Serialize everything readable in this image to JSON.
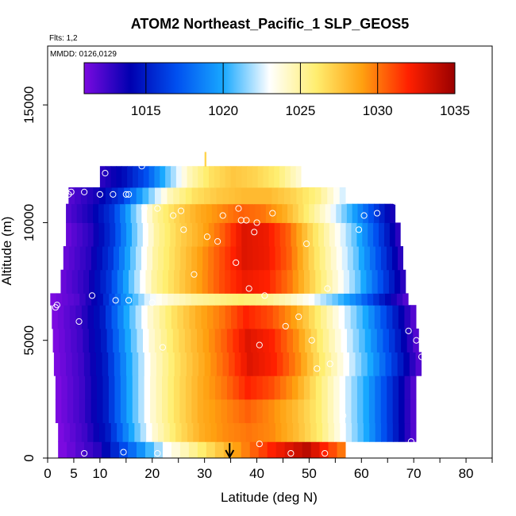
{
  "chart_data": {
    "type": "heatmap",
    "title": "ATOM2 Northeast_Pacific_1 SLP_GEOS5",
    "annotation_flights": "Flts: 1,2",
    "annotation_dates": "MMDD: 0126,0129",
    "xlabel": "Latitude (deg N)",
    "ylabel": "Altitude (m)",
    "xlim": [
      0,
      85
    ],
    "ylim": [
      0,
      17500
    ],
    "x_ticks": [
      0,
      5,
      10,
      20,
      30,
      40,
      50,
      60,
      70,
      80
    ],
    "x_tick_labels": [
      "0",
      "5",
      "10",
      "20",
      "30",
      "40",
      "50",
      "60",
      "70",
      "80"
    ],
    "x_minor_ticks": [
      15,
      25,
      35,
      45,
      55,
      65,
      75,
      85
    ],
    "y_ticks": [
      0,
      5000,
      10000,
      15000
    ],
    "y_tick_labels": [
      "0",
      "5000",
      "10000",
      "15000"
    ],
    "colorbar": {
      "min": 1011,
      "max": 1035,
      "ticks": [
        1015,
        1020,
        1025,
        1030,
        1035
      ],
      "tick_labels": [
        "1015",
        "1020",
        "1025",
        "1030",
        "1035"
      ],
      "colors": [
        "#7b0ae0",
        "#0000b0",
        "#0050f0",
        "#18a8ff",
        "#ffffff",
        "#ffee70",
        "#ffa010",
        "#ff2000",
        "#990000"
      ]
    },
    "grid": false,
    "legend": "colorbar-top",
    "field_rows": [
      {
        "alt": [
          0,
          700
        ],
        "lat": [
          2,
          57
        ],
        "pres": [
          1011,
          1013,
          1018,
          1023,
          1026,
          1029,
          1032,
          1034,
          1030
        ]
      },
      {
        "alt": [
          700,
          1500
        ],
        "lat": [
          2,
          70.5
        ],
        "pres": [
          1011,
          1012.5,
          1015,
          1020,
          1024,
          1026.5,
          1028.5,
          1029.5,
          1030,
          1029.5,
          1028,
          1026,
          1023,
          1020,
          1016,
          1012
        ]
      },
      {
        "alt": [
          1500,
          2500
        ],
        "lat": [
          1.5,
          70.5
        ],
        "pres": [
          1011,
          1012.5,
          1015,
          1020,
          1024,
          1026.5,
          1028.5,
          1029.5,
          1030.5,
          1029.5,
          1028,
          1026,
          1023,
          1020,
          1016,
          1012
        ]
      },
      {
        "alt": [
          2500,
          3500
        ],
        "lat": [
          1.5,
          70.5
        ],
        "pres": [
          1011,
          1012.5,
          1015,
          1020,
          1024,
          1026.5,
          1028.5,
          1030,
          1032,
          1031,
          1029,
          1026,
          1023,
          1020,
          1016,
          1012
        ]
      },
      {
        "alt": [
          3500,
          4500
        ],
        "lat": [
          1.2,
          71.5
        ],
        "pres": [
          1011,
          1012.5,
          1015,
          1020,
          1024,
          1026.5,
          1028.5,
          1030.5,
          1033,
          1032,
          1029.5,
          1026,
          1023,
          1020,
          1016,
          1012
        ]
      },
      {
        "alt": [
          4500,
          5500
        ],
        "lat": [
          1,
          71
        ],
        "pres": [
          1011,
          1012.5,
          1015,
          1020,
          1024,
          1026.5,
          1028.5,
          1030.5,
          1033,
          1032,
          1029.5,
          1026,
          1023,
          1020,
          1016,
          1012
        ]
      },
      {
        "alt": [
          5500,
          6500
        ],
        "lat": [
          0.8,
          70.5
        ],
        "pres": [
          1011,
          1012.5,
          1015,
          1020,
          1024,
          1026.5,
          1028.5,
          1030,
          1032,
          1031,
          1029,
          1026,
          1023,
          1020,
          1016,
          1012
        ]
      },
      {
        "alt": [
          6500,
          7000
        ],
        "lat": [
          0.5,
          69
        ],
        "pres": [
          1011,
          1012,
          1014.5,
          1019,
          1022.5,
          1024,
          1025,
          1025.5,
          1026,
          1025.5,
          1024.5,
          1023,
          1021,
          1018.5,
          1015,
          1012
        ]
      },
      {
        "alt": [
          7000,
          8000
        ],
        "lat": [
          2.5,
          68.5
        ],
        "pres": [
          1011.5,
          1013,
          1016,
          1021,
          1025,
          1027,
          1029,
          1031,
          1032.5,
          1032,
          1030,
          1027,
          1024,
          1021,
          1017,
          1013
        ]
      },
      {
        "alt": [
          8000,
          9000
        ],
        "lat": [
          3,
          68
        ],
        "pres": [
          1011.5,
          1013,
          1016,
          1021,
          1025,
          1027,
          1029,
          1031,
          1033,
          1032.5,
          1030.5,
          1027,
          1024,
          1021,
          1017,
          1013
        ]
      },
      {
        "alt": [
          9000,
          10000
        ],
        "lat": [
          3.5,
          67.5
        ],
        "pres": [
          1011.5,
          1013,
          1016,
          1021,
          1025,
          1027,
          1028.5,
          1030.5,
          1033,
          1032.5,
          1030.5,
          1027,
          1024,
          1021,
          1017,
          1013
        ]
      },
      {
        "alt": [
          10000,
          10800
        ],
        "lat": [
          3.5,
          66.5
        ],
        "pres": [
          1012,
          1013.5,
          1016,
          1021,
          1025,
          1027,
          1028.5,
          1029.5,
          1030.5,
          1030,
          1028.5,
          1026,
          1023.5,
          1020.5,
          1017,
          1013.5
        ]
      },
      {
        "alt": [
          10800,
          11500
        ],
        "lat": [
          4,
          57
        ],
        "pres": [
          1012,
          1013.5,
          1016,
          1020.5,
          1024.5,
          1026.5,
          1027.5,
          1028,
          1028,
          1027,
          1025.5,
          1022.5
        ]
      },
      {
        "alt": [
          11500,
          12400
        ],
        "lat": [
          10,
          48.5
        ],
        "pres": [
          1013,
          1014.5,
          1017,
          1021,
          1024.5,
          1026.5,
          1027.5,
          1027,
          1026,
          1024
        ]
      },
      {
        "alt": [
          12400,
          13000
        ],
        "lat": [
          30,
          30.3
        ],
        "pres": [
          1027,
          1027
        ]
      }
    ],
    "points": [
      [
        1,
        300
      ],
      [
        7,
        200
      ],
      [
        14.5,
        250
      ],
      [
        21,
        200
      ],
      [
        40.5,
        600
      ],
      [
        46.5,
        200
      ],
      [
        53,
        200
      ],
      [
        69.5,
        700
      ],
      [
        56.5,
        1800
      ],
      [
        51.5,
        3800
      ],
      [
        54,
        4000
      ],
      [
        71.5,
        4300
      ],
      [
        70.5,
        5000
      ],
      [
        22,
        4700
      ],
      [
        40.5,
        4800
      ],
      [
        50.5,
        5000
      ],
      [
        69,
        5400
      ],
      [
        6,
        5800
      ],
      [
        45.5,
        5600
      ],
      [
        48,
        6000
      ],
      [
        1.5,
        6400
      ],
      [
        1.8,
        6500
      ],
      [
        8.5,
        6900
      ],
      [
        13,
        6700
      ],
      [
        15.5,
        6700
      ],
      [
        20,
        6600
      ],
      [
        28,
        7800
      ],
      [
        38.5,
        7200
      ],
      [
        41.5,
        6900
      ],
      [
        53.5,
        7200
      ],
      [
        36,
        8300
      ],
      [
        49.5,
        9100
      ],
      [
        30.5,
        9400
      ],
      [
        32.5,
        9200
      ],
      [
        26,
        9700
      ],
      [
        39.5,
        9600
      ],
      [
        38,
        10100
      ],
      [
        37,
        10100
      ],
      [
        40,
        10000
      ],
      [
        33.5,
        10300
      ],
      [
        24,
        10300
      ],
      [
        18.5,
        10600
      ],
      [
        21,
        10600
      ],
      [
        25.5,
        10500
      ],
      [
        36.5,
        10600
      ],
      [
        43,
        10400
      ],
      [
        59.5,
        9700
      ],
      [
        60.5,
        10300
      ],
      [
        63,
        10400
      ],
      [
        4,
        11200
      ],
      [
        4.5,
        11300
      ],
      [
        7,
        11300
      ],
      [
        10,
        11200
      ],
      [
        12.5,
        11200
      ],
      [
        15,
        11200
      ],
      [
        15.5,
        11200
      ],
      [
        18,
        12400
      ],
      [
        11,
        12100
      ],
      [
        66.5,
        10900
      ]
    ],
    "flight_marker_latitude": 35,
    "axis_arrow": {
      "lat": 34.8,
      "from_alt": 500,
      "to_alt": 0
    }
  }
}
